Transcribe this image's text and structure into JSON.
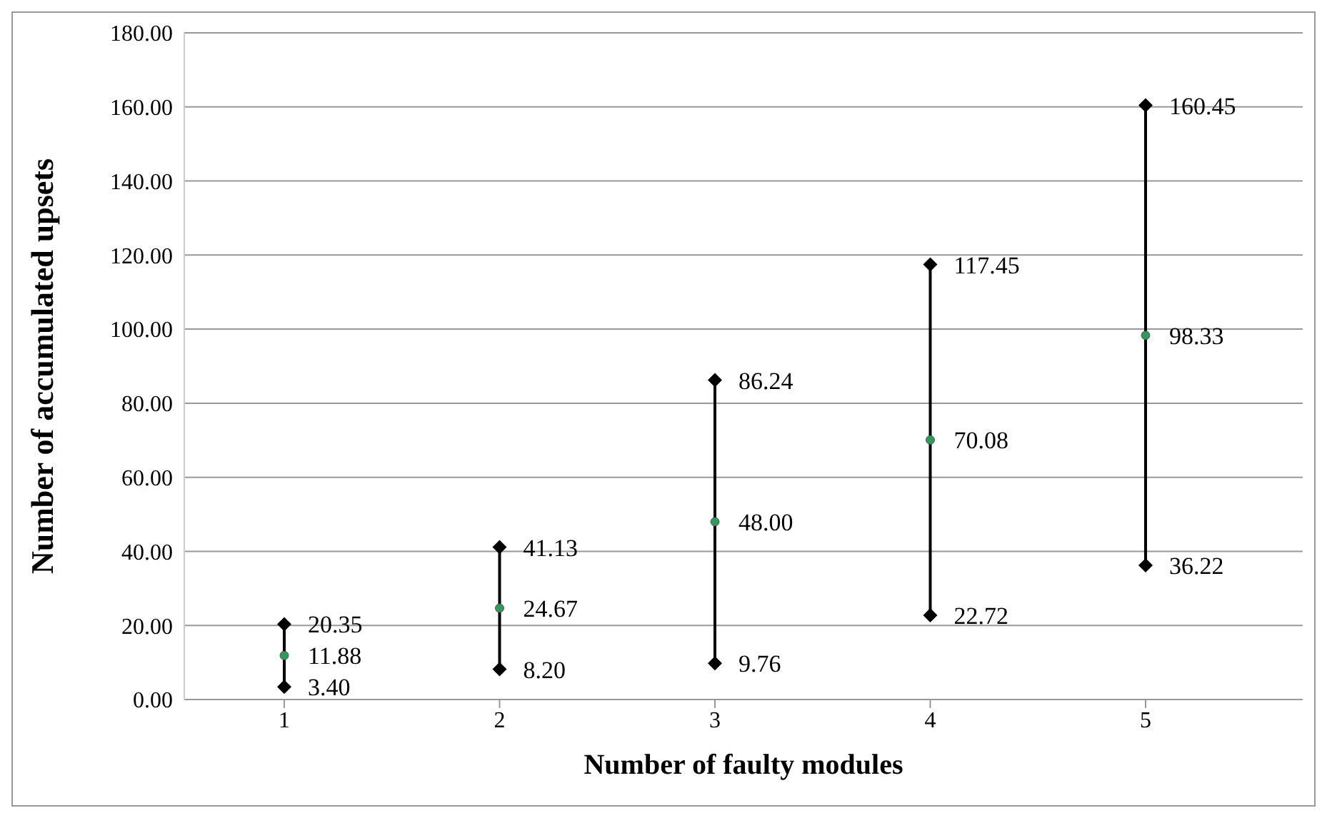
{
  "chart_data": {
    "type": "scatter",
    "xlabel": "Number of faulty modules",
    "ylabel": "Number of accumulated upsets",
    "categories": [
      "1",
      "2",
      "3",
      "4",
      "5"
    ],
    "series": [
      {
        "color": "#000000",
        "marker": "diamond",
        "values": [
          20.35,
          41.13,
          86.24,
          117.45,
          160.45
        ],
        "value_labels": [
          "20.35",
          "41.13",
          "86.24",
          "117.45",
          "160.45"
        ]
      },
      {
        "color": "#2e9b5a",
        "marker": "circle",
        "values": [
          11.88,
          24.67,
          48,
          70.08,
          98.33
        ],
        "value_labels": [
          "11.88",
          "24.67",
          "48.00",
          "70.08",
          "98.33"
        ],
        "errors": [
          [
            8.5,
            8.5
          ],
          [
            16.5,
            16.5
          ],
          [
            38.2,
            38.2
          ],
          [
            47.4,
            47.4
          ],
          [
            62.1,
            62.1
          ]
        ]
      },
      {
        "color": "#000000",
        "marker": "diamond",
        "values": [
          3.4,
          8.2,
          9.76,
          22.72,
          36.22
        ],
        "value_labels": [
          "3.40",
          "8.20",
          "9.76",
          "22.72",
          "36.22"
        ]
      }
    ],
    "ylim": [
      0,
      180
    ],
    "yticks": [
      {
        "value": 0,
        "label": "0.00"
      },
      {
        "value": 20,
        "label": "20.00"
      },
      {
        "value": 40,
        "label": "40.00"
      },
      {
        "value": 60,
        "label": "60.00"
      },
      {
        "value": 80,
        "label": "80.00"
      },
      {
        "value": 100,
        "label": "100.00"
      },
      {
        "value": 120,
        "label": "120.00"
      },
      {
        "value": 140,
        "label": "140.00"
      },
      {
        "value": 160,
        "label": "160.00"
      },
      {
        "value": 180,
        "label": "180.00"
      }
    ],
    "grid": "y",
    "legend": false
  }
}
